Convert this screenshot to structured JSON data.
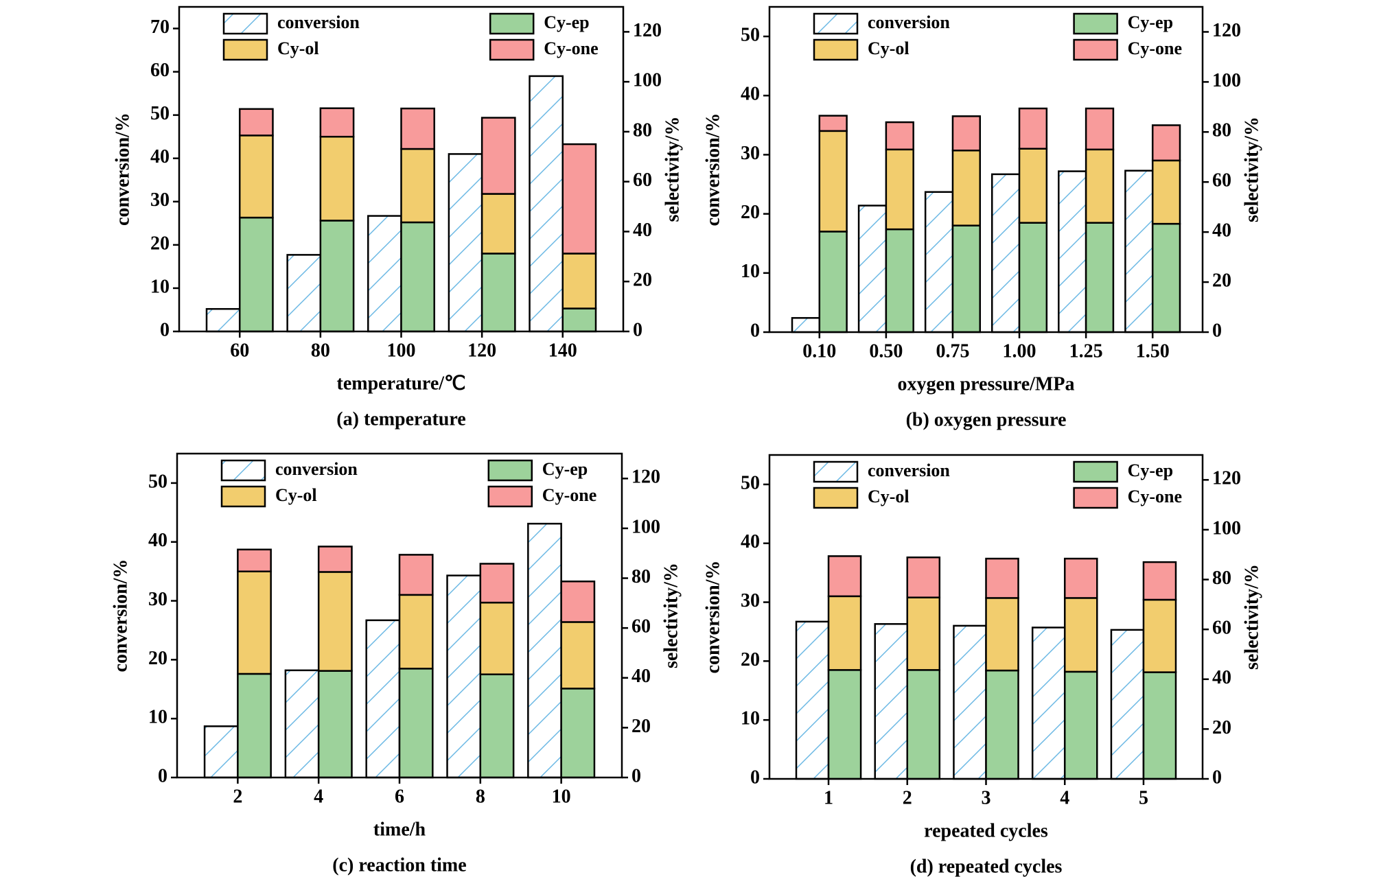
{
  "chart_data": [
    {
      "type": "bar",
      "caption": "(a) temperature",
      "xlabel": "temperature/℃",
      "ylabel": "conversion/%",
      "y2label": "selectivity/%",
      "categories": [
        "60",
        "80",
        "100",
        "120",
        "140"
      ],
      "ylim": [
        0,
        75
      ],
      "yticks": [
        0,
        10,
        20,
        30,
        40,
        50,
        60,
        70
      ],
      "y2lim": [
        0,
        130
      ],
      "y2ticks": [
        0,
        20,
        40,
        60,
        80,
        100,
        120
      ],
      "series": [
        {
          "name": "conversion",
          "color": "#ffffff",
          "hatch": "#6ab8e4",
          "axis": "y",
          "values": [
            5.2,
            17.7,
            26.7,
            41,
            59
          ]
        },
        {
          "name": "Cy-ep",
          "color": "#9dd29b",
          "axis": "y2",
          "values": [
            45.6,
            44.4,
            43.7,
            31.2,
            9.2
          ]
        },
        {
          "name": "Cy-ol",
          "color": "#f2cd6e",
          "axis": "y2",
          "values": [
            32.9,
            33.6,
            29.4,
            23.9,
            22
          ]
        },
        {
          "name": "Cy-one",
          "color": "#f89b9b",
          "axis": "y2",
          "values": [
            10.6,
            11.4,
            16.2,
            30.5,
            43.8
          ]
        }
      ]
    },
    {
      "type": "bar",
      "caption": "(b)  oxygen pressure",
      "xlabel": "oxygen pressure/MPa",
      "ylabel": "conversion/%",
      "y2label": "selectivity/%",
      "categories": [
        "0.10",
        "0.50",
        "0.75",
        "1.00",
        "1.25",
        "1.50"
      ],
      "ylim": [
        0,
        55
      ],
      "yticks": [
        0,
        10,
        20,
        30,
        40,
        50
      ],
      "y2lim": [
        0,
        130
      ],
      "y2ticks": [
        0,
        20,
        40,
        60,
        80,
        100,
        120
      ],
      "series": [
        {
          "name": "conversion",
          "color": "#ffffff",
          "hatch": "#6ab8e4",
          "axis": "y",
          "values": [
            2.4,
            21.4,
            23.7,
            26.7,
            27.2,
            27.3
          ]
        },
        {
          "name": "Cy-ep",
          "color": "#9dd29b",
          "axis": "y2",
          "values": [
            40.2,
            41.1,
            42.6,
            43.7,
            43.7,
            43.3
          ]
        },
        {
          "name": "Cy-ol",
          "color": "#f2cd6e",
          "axis": "y2",
          "values": [
            40.2,
            31.9,
            30,
            29.6,
            29.3,
            25.3
          ]
        },
        {
          "name": "Cy-one",
          "color": "#f89b9b",
          "axis": "y2",
          "values": [
            6.1,
            10.9,
            13.7,
            16.1,
            16.4,
            14.1
          ]
        }
      ]
    },
    {
      "type": "bar",
      "caption": "(c) reaction time",
      "xlabel": "time/h",
      "ylabel": "conversion/%",
      "y2label": "selectivity/%",
      "categories": [
        "2",
        "4",
        "6",
        "8",
        "10"
      ],
      "ylim": [
        0,
        55
      ],
      "yticks": [
        0,
        10,
        20,
        30,
        40,
        50
      ],
      "y2lim": [
        0,
        130
      ],
      "y2ticks": [
        0,
        20,
        40,
        60,
        80,
        100,
        120
      ],
      "series": [
        {
          "name": "conversion",
          "color": "#ffffff",
          "hatch": "#6ab8e4",
          "axis": "y",
          "values": [
            8.7,
            18.2,
            26.7,
            34.3,
            43.1
          ]
        },
        {
          "name": "Cy-ep",
          "color": "#9dd29b",
          "axis": "y2",
          "values": [
            41.6,
            42.8,
            43.7,
            41.4,
            35.7
          ]
        },
        {
          "name": "Cy-ol",
          "color": "#f2cd6e",
          "axis": "y2",
          "values": [
            41.1,
            39.7,
            29.6,
            28.8,
            26.7
          ]
        },
        {
          "name": "Cy-one",
          "color": "#f89b9b",
          "axis": "y2",
          "values": [
            8.8,
            10.2,
            16.1,
            15.6,
            16.3
          ]
        }
      ]
    },
    {
      "type": "bar",
      "caption": "(d) repeated cycles",
      "xlabel": "repeated cycles",
      "ylabel": "conversion/%",
      "y2label": "selectivity/%",
      "categories": [
        "1",
        "2",
        "3",
        "4",
        "5"
      ],
      "ylim": [
        0,
        55
      ],
      "yticks": [
        0,
        10,
        20,
        30,
        40,
        50
      ],
      "y2lim": [
        0,
        130
      ],
      "y2ticks": [
        0,
        20,
        40,
        60,
        80,
        100,
        120
      ],
      "series": [
        {
          "name": "conversion",
          "color": "#ffffff",
          "hatch": "#6ab8e4",
          "axis": "y",
          "values": [
            26.7,
            26.3,
            26.0,
            25.7,
            25.3
          ]
        },
        {
          "name": "Cy-ep",
          "color": "#9dd29b",
          "axis": "y2",
          "values": [
            43.7,
            43.7,
            43.5,
            43,
            42.8
          ]
        },
        {
          "name": "Cy-ol",
          "color": "#f2cd6e",
          "axis": "y2",
          "values": [
            29.6,
            29.1,
            29.1,
            29.6,
            29.1
          ]
        },
        {
          "name": "Cy-one",
          "color": "#f89b9b",
          "axis": "y2",
          "values": [
            16.1,
            16.1,
            15.8,
            15.8,
            15.1
          ]
        }
      ]
    }
  ]
}
